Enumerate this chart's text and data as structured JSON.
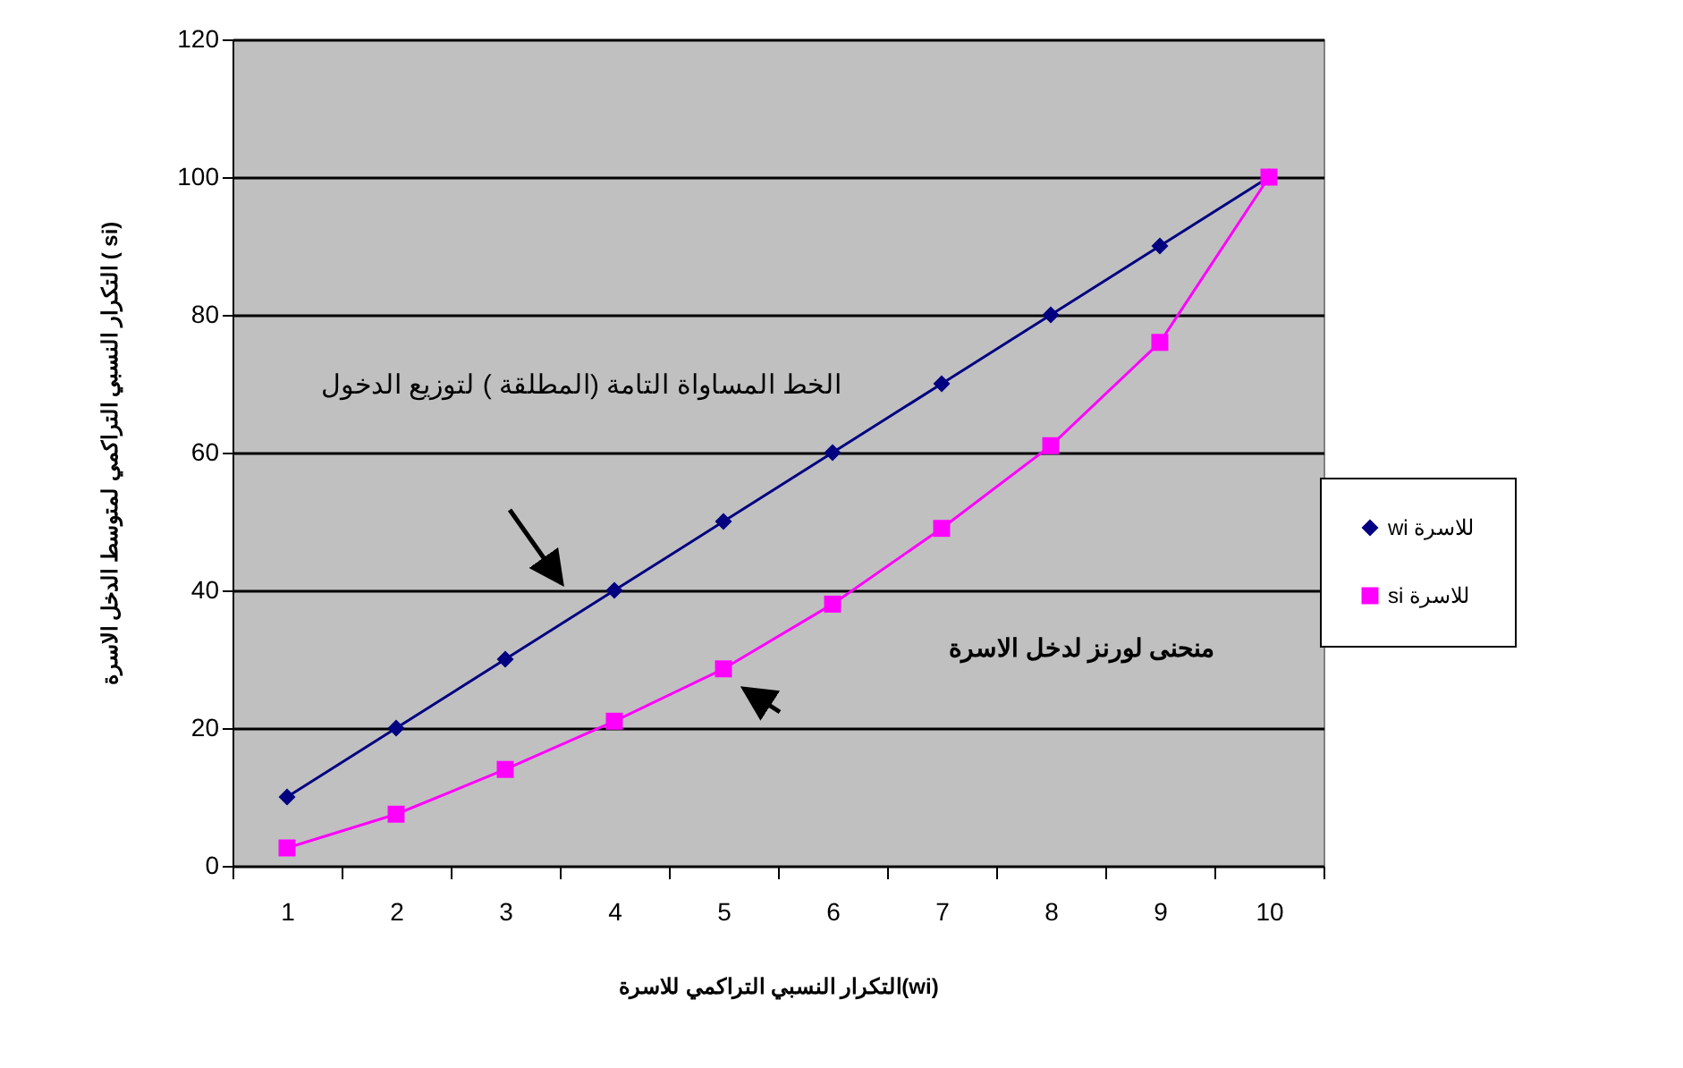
{
  "chart_data": {
    "type": "line",
    "xlabel": "التكرار النسبي التراكمي للاسرة(wi)",
    "ylabel": "التكرار النسبي التراكمي لمتوسط الدخل الاسرة ( si)",
    "categories": [
      "1",
      "2",
      "3",
      "4",
      "5",
      "6",
      "7",
      "8",
      "9",
      "10"
    ],
    "series": [
      {
        "name": "wi للاسرة",
        "color": "#000080",
        "marker": "diamond",
        "values": [
          10,
          20,
          30,
          40,
          50,
          60,
          70,
          80,
          90,
          100
        ]
      },
      {
        "name": "si للاسرة",
        "color": "#ff00ff",
        "marker": "square",
        "values": [
          2.6,
          7.5,
          14,
          21,
          28.6,
          38,
          49,
          61,
          76,
          100
        ]
      }
    ],
    "ylim": [
      0,
      120
    ],
    "yticks": [
      0,
      20,
      40,
      60,
      80,
      100,
      120
    ],
    "grid": "y",
    "legend": "right",
    "annotations": [
      "الخط المساواة التامة (المطلقة ) لتوزيع الدخول",
      "منحنى لورنز لدخل الاسرة"
    ]
  }
}
